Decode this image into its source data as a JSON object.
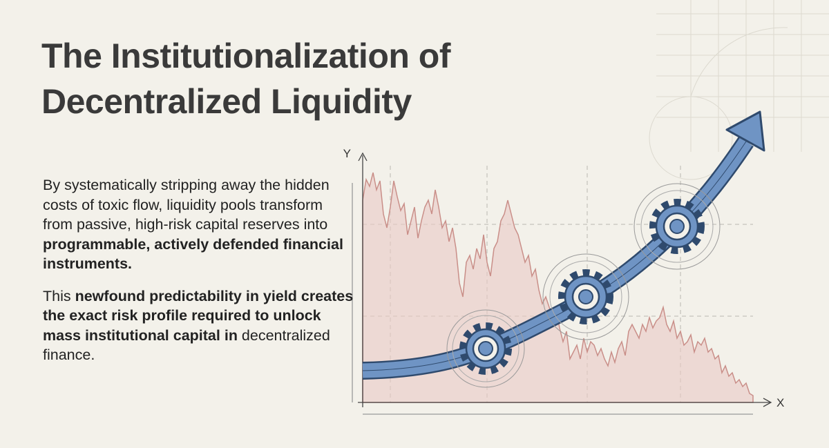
{
  "header": {
    "title": "The Institutionalization of Decentralized Liquidity"
  },
  "body": {
    "paragraphs": [
      [
        {
          "text": "By systematically stripping away the hidden costs of toxic flow, liquidity pools transform from passive, high-risk capital reserves into ",
          "bold": false
        },
        {
          "text": "programmable, actively defended financial instruments.",
          "bold": true
        }
      ],
      [
        {
          "text": "This ",
          "bold": false
        },
        {
          "text": "newfound predictability in yield creates the exact risk profile required to unlock mass institutional capital in",
          "bold": true
        },
        {
          "text": " decentralized finance.",
          "bold": false
        }
      ]
    ]
  },
  "illustration": {
    "y_axis_label": "Y",
    "x_axis_label": "X"
  }
}
